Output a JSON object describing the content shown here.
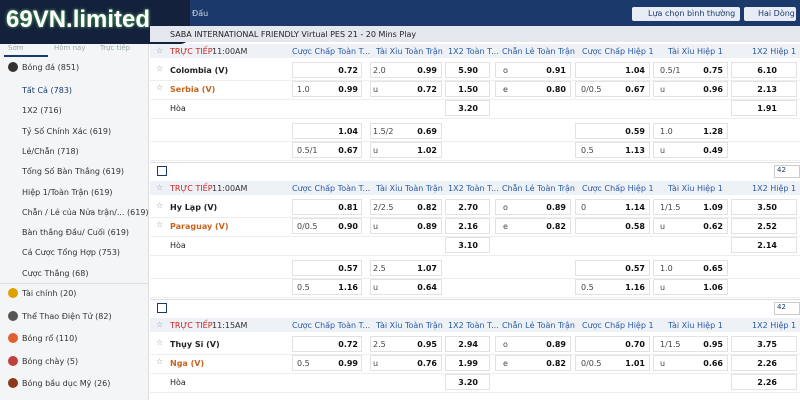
{
  "header": {
    "logo": "69VN.limited",
    "breadcrumb": "Đấu",
    "view_select": "Lựa chọn bình thường",
    "lines_select": "Hai Dòng"
  },
  "sidebar": {
    "tabs": [
      "Sớm",
      "Hôm nay",
      "Trực tiếp"
    ],
    "soccer": {
      "label": "Bóng đá",
      "count": "(851)",
      "sub": [
        {
          "label": "Tất Cả",
          "count": "(783)"
        },
        {
          "label": "1X2",
          "count": "(716)"
        },
        {
          "label": "Tỷ Số Chính Xác",
          "count": "(619)"
        },
        {
          "label": "Lẻ/Chẵn",
          "count": "(718)"
        },
        {
          "label": "Tổng Số Bàn Thắng",
          "count": "(619)"
        },
        {
          "label": "Hiệp 1/Toàn Trận",
          "count": "(619)"
        },
        {
          "label": "Chẵn / Lẻ của Nửa trận/...",
          "count": "(619)"
        },
        {
          "label": "Bàn thắng Đầu/ Cuối",
          "count": "(619)"
        },
        {
          "label": "Cá Cược Tổng Hợp",
          "count": "(753)"
        },
        {
          "label": "Cược Thắng",
          "count": "(68)"
        }
      ]
    },
    "sports": [
      {
        "label": "Tài chính",
        "count": "(20)"
      },
      {
        "label": "Thể Thao Điện Tử",
        "count": "(82)"
      },
      {
        "label": "Bóng rổ",
        "count": "(110)"
      },
      {
        "label": "Bóng chày",
        "count": "(5)"
      },
      {
        "label": "Bóng bầu dục Mỹ",
        "count": "(26)"
      }
    ]
  },
  "league": "SABA INTERNATIONAL FRIENDLY Virtual PES 21 - 20 Mins Play",
  "matches": [
    {
      "status": "TRỰC TIẾP",
      "time": "11:00AM",
      "columns": [
        "Cược Chấp Toàn T...",
        "Tài Xỉu Toàn Trận",
        "1X2 Toàn T...",
        "Chẵn Lẻ Toàn Trận",
        "Cược Chấp Hiệp 1",
        "Tài Xỉu Hiệp 1",
        "1X2 Hiệp 1"
      ],
      "rows": [
        {
          "team": "Colombia (V)",
          "cells": [
            null,
            "0.72",
            "2.0",
            "0.99",
            "5.90",
            "o",
            "0.91",
            null,
            "1.04",
            "0.5/1",
            "0.75",
            "6.10"
          ]
        },
        {
          "team": "Serbia (V)",
          "cells": [
            "1.0",
            "0.99",
            "u",
            "0.72",
            "1.50",
            "e",
            "0.80",
            "0/0.5",
            "0.67",
            "u",
            "0.96",
            "2.13"
          ]
        },
        {
          "team": "Hòa",
          "cells": [
            null,
            null,
            null,
            null,
            "3.20",
            null,
            null,
            null,
            null,
            null,
            null,
            "1.91"
          ]
        },
        {
          "cells": [
            null,
            "1.04",
            "1.5/2",
            "0.69",
            null,
            null,
            null,
            null,
            "0.59",
            "1.0",
            "1.28",
            null
          ]
        },
        {
          "cells": [
            "0.5/1",
            "0.67",
            "u",
            "1.02",
            null,
            null,
            null,
            "0.5",
            "1.13",
            "u",
            "0.49",
            null
          ]
        }
      ]
    },
    {
      "count": "42",
      "status": "TRỰC TIẾP",
      "time": "11:00AM",
      "columns": [
        "Cược Chấp Toàn T...",
        "Tài Xỉu Toàn Trận",
        "1X2 Toàn T...",
        "Chẵn Lẻ Toàn Trận",
        "Cược Chấp Hiệp 1",
        "Tài Xỉu Hiệp 1",
        "1X2 Hiệp 1"
      ],
      "rows": [
        {
          "team": "Hy Lạp (V)",
          "cells": [
            null,
            "0.81",
            "2/2.5",
            "0.82",
            "2.70",
            "o",
            "0.89",
            "0",
            "1.14",
            "1/1.5",
            "1.09",
            "3.50"
          ]
        },
        {
          "team": "Paraguay (V)",
          "cells": [
            "0/0.5",
            "0.90",
            "u",
            "0.89",
            "2.16",
            "e",
            "0.82",
            null,
            "0.58",
            "u",
            "0.62",
            "2.52"
          ]
        },
        {
          "team": "Hòa",
          "cells": [
            null,
            null,
            null,
            null,
            "3.10",
            null,
            null,
            null,
            null,
            null,
            null,
            "2.14"
          ]
        },
        {
          "cells": [
            null,
            "0.57",
            "2.5",
            "1.07",
            null,
            null,
            null,
            null,
            "0.57",
            "1.0",
            "0.65",
            null
          ]
        },
        {
          "cells": [
            "0.5",
            "1.16",
            "u",
            "0.64",
            null,
            null,
            null,
            "0.5",
            "1.16",
            "u",
            "1.06",
            null
          ]
        }
      ]
    },
    {
      "count": "42",
      "status": "TRỰC TIẾP",
      "time": "11:15AM",
      "columns": [
        "Cược Chấp Toàn T...",
        "Tài Xỉu Toàn Trận",
        "1X2 Toàn T...",
        "Chẵn Lẻ Toàn Trận",
        "Cược Chấp Hiệp 1",
        "Tài Xỉu Hiệp 1",
        "1X2 Hiệp 1"
      ],
      "rows": [
        {
          "team": "Thụy Sĩ (V)",
          "cells": [
            null,
            "0.72",
            "2.5",
            "0.95",
            "2.94",
            "o",
            "0.89",
            null,
            "0.70",
            "1/1.5",
            "0.95",
            "3.75"
          ]
        },
        {
          "team": "Nga (V)",
          "cells": [
            "0.5",
            "0.99",
            "u",
            "0.76",
            "1.99",
            "e",
            "0.82",
            "0/0.5",
            "1.01",
            "u",
            "0.66",
            "2.26"
          ]
        },
        {
          "team": "Hòa",
          "cells": [
            null,
            null,
            null,
            null,
            "3.20",
            null,
            null,
            null,
            null,
            null,
            null,
            "2.26"
          ]
        }
      ]
    }
  ]
}
